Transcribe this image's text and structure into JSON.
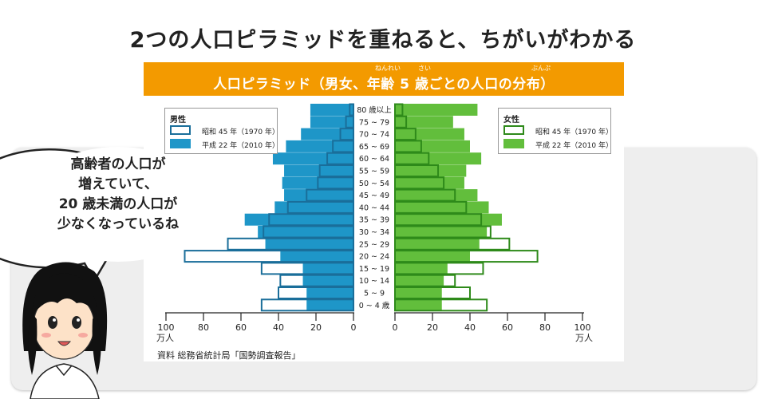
{
  "headline": "2つの人口ピラミッドを重ねると、ちがいがわかる",
  "banner": {
    "title": "人口ピラミッド（男女、年齢 5 歳ごとの人口の分布）",
    "ruby_nenrei": "ねんれい",
    "ruby_sai": "さい",
    "ruby_bunpu": "ぶんぷ"
  },
  "speech_bubble": {
    "lines": [
      "高齢者の人口が",
      "増えていて、",
      "20 歳未満の人口が",
      "少なくなっているね"
    ]
  },
  "colors": {
    "male_2010": "#1e96c8",
    "male_1970_outline": "#1a6e9a",
    "female_2010": "#62be3c",
    "female_1970_outline": "#2e8a1a",
    "banner": "#f39a00"
  },
  "legend_male": {
    "title": "男性",
    "items": [
      "昭和 45 年（1970 年）",
      "平成 22 年（2010 年）"
    ]
  },
  "legend_female": {
    "title": "女性",
    "items": [
      "昭和 45 年（1970 年）",
      "平成 22 年（2010 年）"
    ]
  },
  "source": "資料 総務省統計局「国勢調査報告」",
  "chart_data": {
    "type": "bar",
    "orientation": "horizontal-pyramid",
    "unit_label": "万人",
    "age_groups": [
      "80 歳以上",
      "75 ~ 79",
      "70 ~ 74",
      "65 ~ 69",
      "60 ~ 64",
      "55 ~ 59",
      "50 ~ 54",
      "45 ~ 49",
      "40 ~ 44",
      "35 ~ 39",
      "30 ~ 34",
      "25 ~ 29",
      "20 ~ 24",
      "15 ~ 19",
      "10 ~ 14",
      "5 ~ 9",
      "0 ~ 4 歳"
    ],
    "male_axis_ticks": [
      100,
      80,
      60,
      40,
      20,
      0
    ],
    "female_axis_ticks": [
      0,
      20,
      40,
      60,
      80,
      100
    ],
    "xlim": [
      0,
      100
    ],
    "series": [
      {
        "name": "昭和 45 年（1970 年）",
        "side": "male",
        "values": [
          2,
          4,
          7,
          11,
          14,
          18,
          19,
          25,
          35,
          45,
          48,
          67,
          90,
          49,
          39,
          40,
          49
        ]
      },
      {
        "name": "平成 22 年（2010 年）",
        "side": "male",
        "values": [
          23,
          23,
          28,
          36,
          43,
          37,
          38,
          37,
          42,
          58,
          51,
          47,
          39,
          27,
          27,
          25,
          25
        ]
      },
      {
        "name": "昭和 45 年（1970 年）",
        "side": "female",
        "values": [
          4,
          6,
          11,
          14,
          18,
          23,
          26,
          32,
          38,
          46,
          51,
          61,
          76,
          47,
          32,
          40,
          49
        ]
      },
      {
        "name": "平成 22 年（2010 年）",
        "side": "female",
        "values": [
          44,
          31,
          37,
          40,
          46,
          38,
          37,
          44,
          50,
          57,
          49,
          45,
          40,
          28,
          26,
          25,
          25
        ]
      }
    ]
  }
}
